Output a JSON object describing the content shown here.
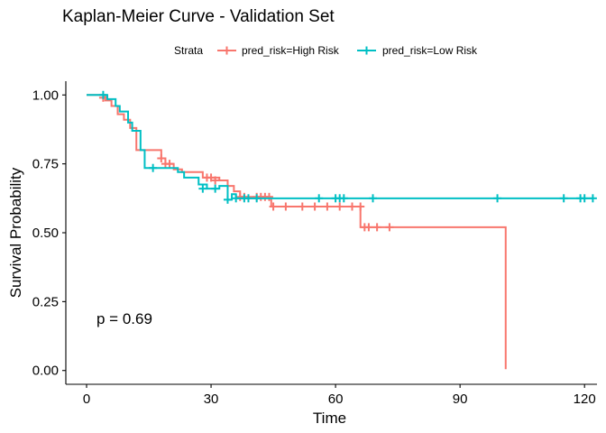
{
  "chart_data": {
    "type": "line",
    "title": "Kaplan-Meier Curve - Validation Set",
    "xlabel": "Time",
    "ylabel": "Survival Probability",
    "xlim": [
      -5,
      123
    ],
    "ylim": [
      -0.05,
      1.05
    ],
    "x_ticks": [
      "0",
      "30",
      "60",
      "90",
      "120"
    ],
    "x_tick_values": [
      0,
      30,
      60,
      90,
      120
    ],
    "y_ticks": [
      "0.00",
      "0.25",
      "0.50",
      "0.75",
      "1.00"
    ],
    "y_tick_values": [
      0,
      0.25,
      0.5,
      0.75,
      1.0
    ],
    "grid": false,
    "legend": {
      "title": "Strata",
      "position": "top",
      "entries": [
        "pred_risk=High Risk",
        "pred_risk=Low Risk"
      ]
    },
    "annotation": "p = 0.69",
    "series": [
      {
        "name": "pred_risk=High Risk",
        "color": "#F8766D",
        "steps": [
          [
            0,
            1.0
          ],
          [
            4.5,
            0.98
          ],
          [
            6,
            0.96
          ],
          [
            7.5,
            0.93
          ],
          [
            9,
            0.91
          ],
          [
            10.5,
            0.88
          ],
          [
            12,
            0.8
          ],
          [
            18,
            0.77
          ],
          [
            19,
            0.75
          ],
          [
            21,
            0.73
          ],
          [
            23,
            0.72
          ],
          [
            28,
            0.7
          ],
          [
            32,
            0.69
          ],
          [
            34,
            0.67
          ],
          [
            35.5,
            0.65
          ],
          [
            37,
            0.63
          ],
          [
            44,
            0.63
          ],
          [
            44.5,
            0.595
          ],
          [
            66,
            0.52
          ],
          [
            101,
            0.52
          ],
          [
            101,
            0.005
          ]
        ],
        "censor": [
          [
            4,
            0.99
          ],
          [
            18,
            0.77
          ],
          [
            19,
            0.75
          ],
          [
            20,
            0.75
          ],
          [
            29,
            0.7
          ],
          [
            30,
            0.7
          ],
          [
            31,
            0.69
          ],
          [
            37,
            0.63
          ],
          [
            38,
            0.63
          ],
          [
            41,
            0.63
          ],
          [
            42,
            0.63
          ],
          [
            43,
            0.63
          ],
          [
            44,
            0.63
          ],
          [
            45,
            0.595
          ],
          [
            48,
            0.595
          ],
          [
            52,
            0.595
          ],
          [
            55,
            0.595
          ],
          [
            58,
            0.595
          ],
          [
            61,
            0.595
          ],
          [
            64,
            0.595
          ],
          [
            66,
            0.595
          ],
          [
            67,
            0.52
          ],
          [
            68,
            0.52
          ],
          [
            70,
            0.52
          ],
          [
            73,
            0.52
          ]
        ]
      },
      {
        "name": "pred_risk=Low Risk",
        "color": "#00BFC4",
        "steps": [
          [
            0,
            1.0
          ],
          [
            5,
            0.985
          ],
          [
            7,
            0.96
          ],
          [
            8,
            0.94
          ],
          [
            10,
            0.9
          ],
          [
            11,
            0.87
          ],
          [
            13,
            0.8
          ],
          [
            14,
            0.735
          ],
          [
            21,
            0.735
          ],
          [
            22,
            0.72
          ],
          [
            23.5,
            0.7
          ],
          [
            27,
            0.675
          ],
          [
            29,
            0.66
          ],
          [
            32,
            0.67
          ],
          [
            34,
            0.62
          ],
          [
            35,
            0.64
          ],
          [
            36,
            0.625
          ],
          [
            122,
            0.625
          ]
        ],
        "censor": [
          [
            4,
            1.0
          ],
          [
            16,
            0.735
          ],
          [
            28,
            0.66
          ],
          [
            31,
            0.66
          ],
          [
            34,
            0.62
          ],
          [
            36,
            0.625
          ],
          [
            38,
            0.625
          ],
          [
            39,
            0.625
          ],
          [
            41,
            0.625
          ],
          [
            56,
            0.625
          ],
          [
            60,
            0.625
          ],
          [
            61,
            0.625
          ],
          [
            62,
            0.625
          ],
          [
            69,
            0.625
          ],
          [
            99,
            0.625
          ],
          [
            115,
            0.625
          ],
          [
            119,
            0.625
          ],
          [
            120,
            0.625
          ],
          [
            122,
            0.625
          ]
        ]
      }
    ]
  }
}
